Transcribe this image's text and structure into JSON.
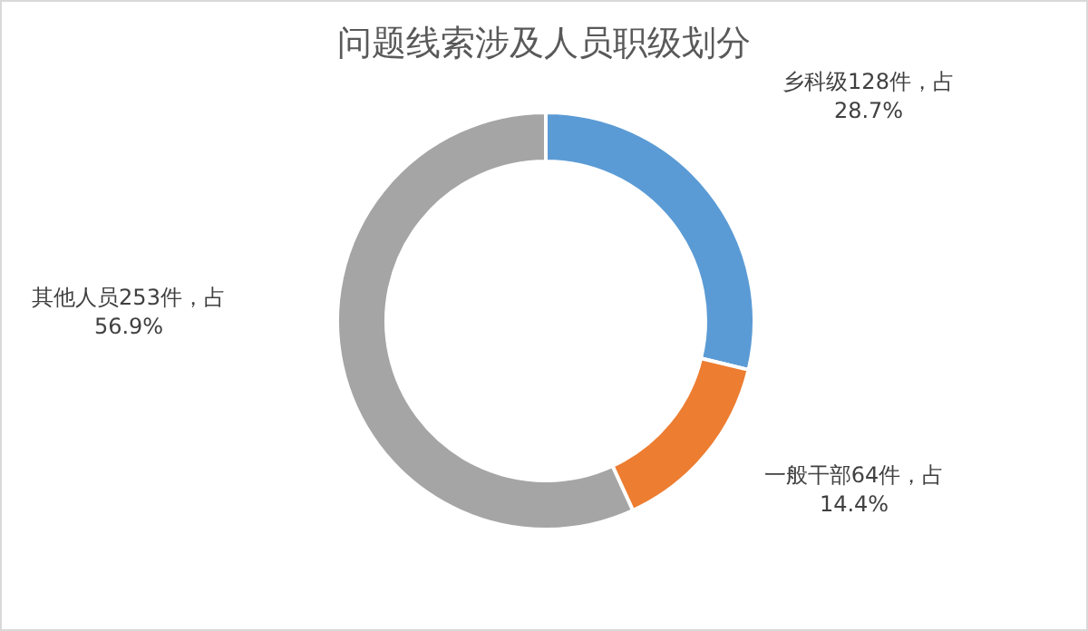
{
  "chart_data": {
    "type": "donut",
    "title": "问题线索涉及人员职级划分",
    "categories": [
      "乡科级128件，占28.7%",
      "一般干部64件，占14.4%",
      "其他人员253件，占56.9%"
    ],
    "values": [
      128,
      64,
      253
    ],
    "colors": [
      "#5b9bd5",
      "#ed7d31",
      "#a5a5a5"
    ],
    "legend": false
  }
}
